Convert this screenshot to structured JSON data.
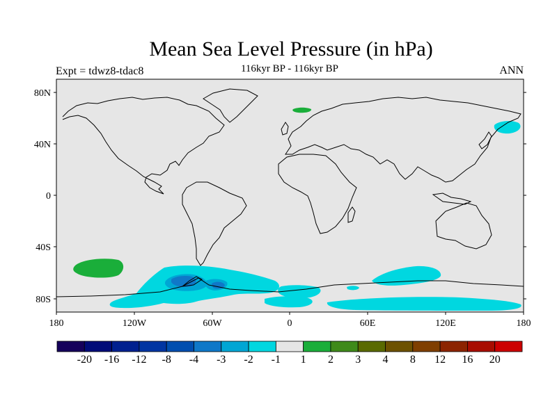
{
  "title": "Mean Sea Level Pressure (in hPa)",
  "subtitle": "116kyr BP - 116kyr BP",
  "left_label": "Expt = tdwz8-tdac8",
  "right_label": "ANN",
  "map": {
    "lat_ticks": [
      "80N",
      "40N",
      "0",
      "40S",
      "80S"
    ],
    "lon_ticks": [
      "180",
      "120W",
      "60W",
      "0",
      "60E",
      "120E",
      "180"
    ],
    "land_color": "#e6e6e6",
    "regions": [
      {
        "name": "south-pacific-positive-anomaly",
        "level": "1 to 2",
        "color": "#1aae3a"
      },
      {
        "name": "scandinavia-positive-anomaly",
        "level": "1 to 2",
        "color": "#1aae3a"
      },
      {
        "name": "kamchatka-negative-anomaly",
        "level": "-2 to -1",
        "color": "#00d7e0"
      },
      {
        "name": "southern-ocean-negative-anomaly",
        "level": "-2 to -1",
        "color": "#00d7e0"
      },
      {
        "name": "amundsen-sea-negative-anomaly",
        "level": "-3 to -2",
        "color": "#00a6d4"
      },
      {
        "name": "drake-passage-negative-anomaly",
        "level": "-4 to -3",
        "color": "#0f78c8"
      }
    ]
  },
  "colorbar": {
    "colors": [
      "#15005b",
      "#000b78",
      "#00208f",
      "#0035a2",
      "#004eaf",
      "#0f78c8",
      "#00a6d4",
      "#00d7e0",
      "#e6e6e6",
      "#1aae3a",
      "#3f8a1a",
      "#5a6a00",
      "#6d5100",
      "#7f3f00",
      "#8c2400",
      "#a80d00",
      "#cc0000"
    ],
    "labels": [
      "-20",
      "-16",
      "-12",
      "-8",
      "-4",
      "-3",
      "-2",
      "-1",
      "1",
      "2",
      "3",
      "4",
      "8",
      "12",
      "16",
      "20"
    ]
  }
}
